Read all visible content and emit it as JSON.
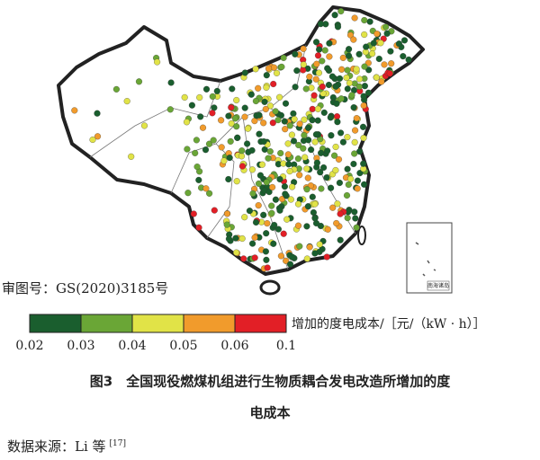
{
  "map": {
    "approval": "审图号：GS(2020)3185号",
    "inset_label": "南海诸岛"
  },
  "legend": {
    "title": "增加的度电成本/［元/（kW · h）］",
    "colors": [
      "#1a5e2e",
      "#6aa636",
      "#e1e347",
      "#f19b2c",
      "#e21f26"
    ],
    "ticks": [
      0.02,
      0.03,
      0.04,
      0.05,
      0.06,
      0.1
    ]
  },
  "caption": {
    "line1": "图3　全国现役燃煤机组进行生物质耦合发电改造所增加的度",
    "line2": "电成本"
  },
  "source": {
    "text": "数据来源：Li 等",
    "ref": "[17]"
  }
}
